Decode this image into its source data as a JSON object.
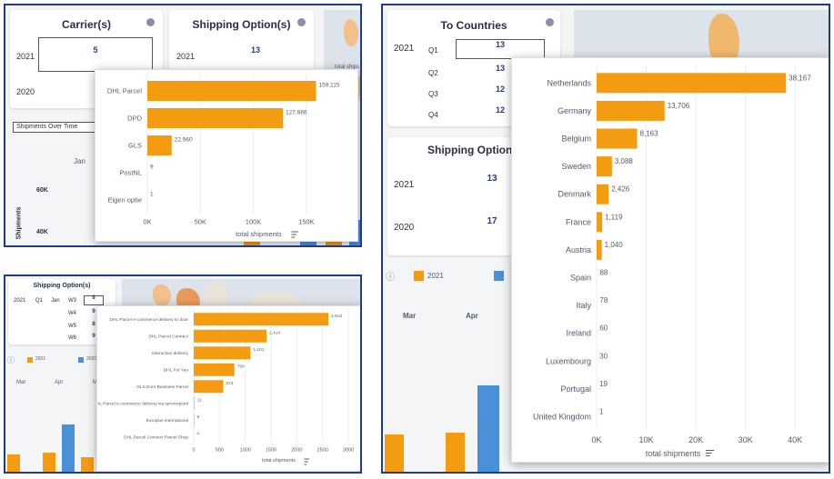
{
  "colors": {
    "accent": "#f39c12",
    "series_2020": "#4a90d9",
    "frame": "#1f3c88"
  },
  "p1": {
    "carriers_title": "Carrier(s)",
    "shipping_title": "Shipping Option(s)",
    "rows": [
      {
        "year": "2021",
        "carriers": "5",
        "shipping": "13"
      },
      {
        "year": "2020"
      }
    ],
    "timeline_select": "Shipments Over Time",
    "month": "Jan",
    "y_ticks": [
      "60K",
      "40K"
    ],
    "y_label": "Shipments",
    "map_label": "total ships",
    "popup": {
      "categories": [
        "DHL Parcel",
        "DPD",
        "GLS",
        "PostNL",
        "Eigen optie"
      ],
      "labels": [
        "159,115",
        "127,866",
        "22,960",
        "9",
        "1"
      ],
      "x_ticks": [
        "0K",
        "50K",
        "100K",
        "150K"
      ],
      "x_label": "total shipments"
    }
  },
  "p2": {
    "title": "Shipping Option(s)",
    "year": "2021",
    "quarter": "Q1",
    "months": [
      "Jan"
    ],
    "weeks": [
      "W3",
      "W4",
      "W5",
      "W6"
    ],
    "week_values": [
      "8",
      "9",
      "8",
      "9"
    ],
    "legend": [
      "2021",
      "2020"
    ],
    "months_axis": [
      "Mar",
      "Apr",
      "M"
    ],
    "popup": {
      "categories": [
        "DHL Parcel e-commerce delivery to door",
        "DHL Parcel Connect",
        "Interactive delivery",
        "DHL For You",
        "GLS Euro Business Parcel",
        "DHL Parcel e-commerce delivery via servicepoint",
        "Europlus international",
        "DHL Parcel Connect Parcel Shop"
      ],
      "labels": [
        "2,613",
        "1,414",
        "1,101",
        "790",
        "574",
        "11",
        "9",
        "4"
      ],
      "x_ticks": [
        "0",
        "500",
        "1000",
        "1500",
        "2000",
        "2500",
        "3000"
      ],
      "x_label": "total shipments"
    }
  },
  "p3": {
    "countries_title": "To Countries",
    "year": "2021",
    "quarters": [
      {
        "q": "Q1",
        "v": "13"
      },
      {
        "q": "Q2",
        "v": "13"
      },
      {
        "q": "Q3",
        "v": "12"
      },
      {
        "q": "Q4",
        "v": "12"
      }
    ],
    "shipping_title": "Shipping Option(",
    "ship_rows": [
      {
        "year": "2021",
        "v": "13"
      },
      {
        "year": "2020",
        "v": "17"
      }
    ],
    "legend": [
      "2021"
    ],
    "months": [
      "Mar",
      "Apr"
    ],
    "popup": {
      "categories": [
        "Netherlands",
        "Germany",
        "Belgium",
        "Sweden",
        "Denmark",
        "France",
        "Austria",
        "Spain",
        "Italy",
        "Ireland",
        "Luxembourg",
        "Portugal",
        "United Kingdom"
      ],
      "labels": [
        "38,167",
        "13,706",
        "8,163",
        "3,088",
        "2,426",
        "1,119",
        "1,040",
        "88",
        "78",
        "60",
        "30",
        "19",
        "1"
      ],
      "x_ticks": [
        "0K",
        "10K",
        "20K",
        "30K",
        "40K"
      ],
      "x_label": "total shipments"
    }
  },
  "chart_data": [
    {
      "type": "bar",
      "orientation": "horizontal",
      "title": "",
      "categories": [
        "DHL Parcel",
        "DPD",
        "GLS",
        "PostNL",
        "Eigen optie"
      ],
      "values": [
        159115,
        127866,
        22960,
        9,
        1
      ],
      "xlabel": "total shipments",
      "xlim": [
        0,
        175000
      ]
    },
    {
      "type": "bar",
      "orientation": "horizontal",
      "title": "",
      "categories": [
        "DHL Parcel e-commerce delivery to door",
        "DHL Parcel Connect",
        "Interactive delivery",
        "DHL For You",
        "GLS Euro Business Parcel",
        "DHL Parcel e-commerce delivery via servicepoint",
        "Europlus international",
        "DHL Parcel Connect Parcel Shop"
      ],
      "values": [
        2613,
        1414,
        1101,
        790,
        574,
        11,
        9,
        4
      ],
      "xlabel": "total shipments",
      "xlim": [
        0,
        3000
      ]
    },
    {
      "type": "bar",
      "orientation": "horizontal",
      "title": "",
      "categories": [
        "Netherlands",
        "Germany",
        "Belgium",
        "Sweden",
        "Denmark",
        "France",
        "Austria",
        "Spain",
        "Italy",
        "Ireland",
        "Luxembourg",
        "Portugal",
        "United Kingdom"
      ],
      "values": [
        38167,
        13706,
        8163,
        3088,
        2426,
        1119,
        1040,
        88,
        78,
        60,
        30,
        19,
        1
      ],
      "xlabel": "total shipments",
      "xlim": [
        0,
        44000
      ]
    }
  ]
}
